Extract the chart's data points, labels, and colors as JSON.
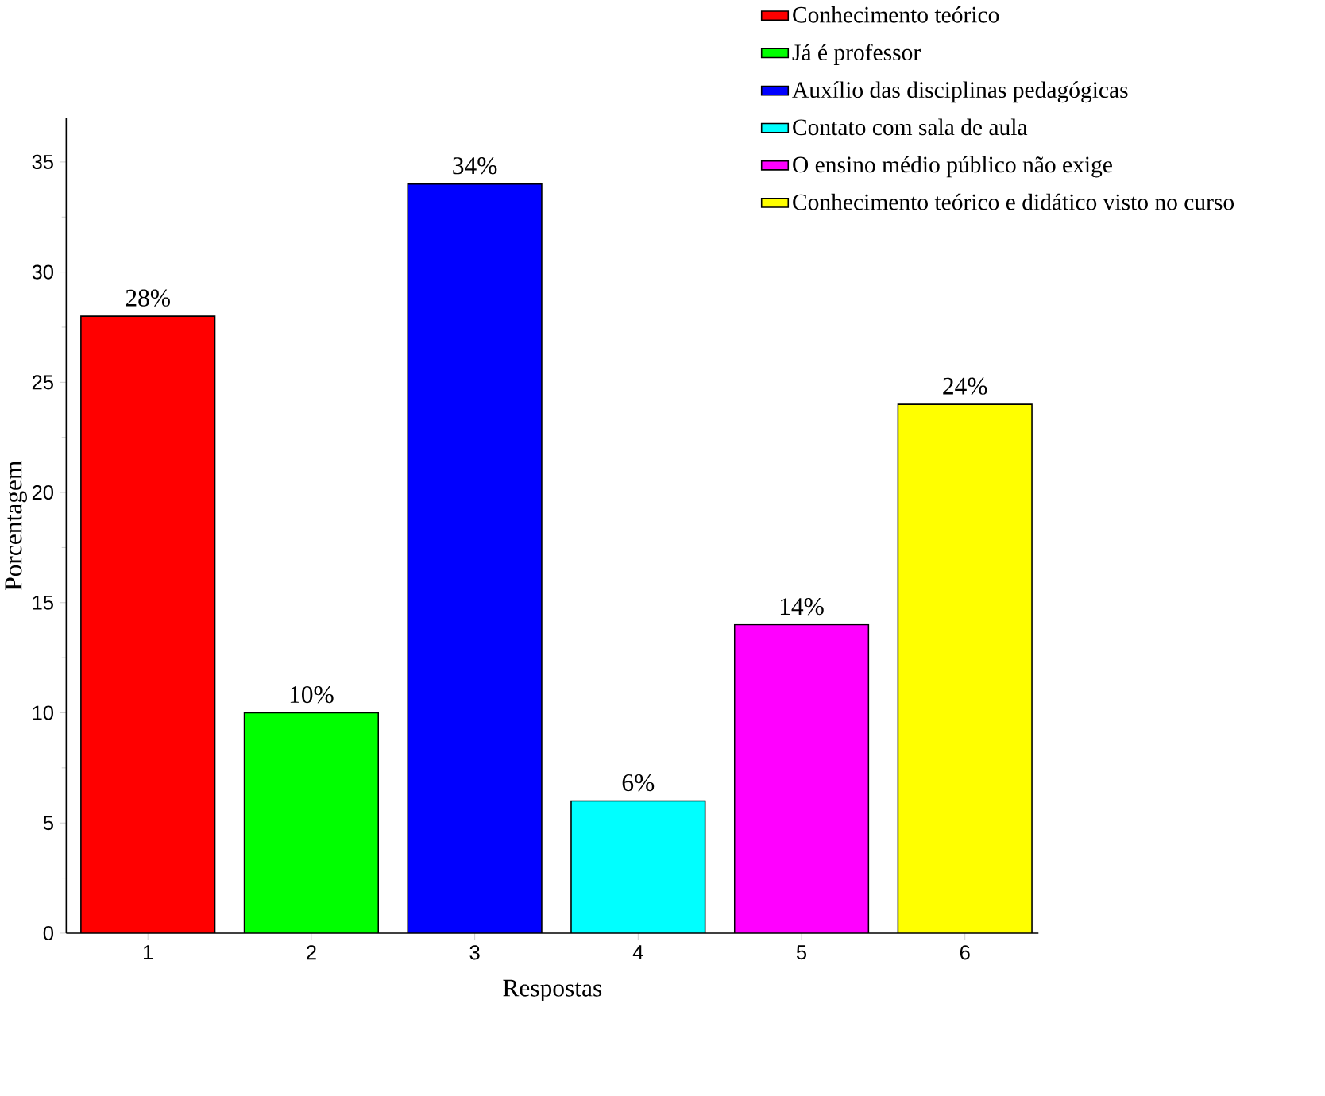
{
  "chart_data": {
    "type": "bar",
    "xlabel": "Respostas",
    "ylabel": "Porcentagem",
    "categories": [
      "1",
      "2",
      "3",
      "4",
      "5",
      "6"
    ],
    "series": [
      {
        "name": "Conhecimento teórico",
        "color": "#ff0000",
        "values": [
          28,
          null,
          null,
          null,
          null,
          null
        ],
        "value_labels": [
          "28%",
          null,
          null,
          null,
          null,
          null
        ]
      },
      {
        "name": "Já é professor",
        "color": "#00ff00",
        "values": [
          null,
          10,
          null,
          null,
          null,
          null
        ],
        "value_labels": [
          null,
          "10%",
          null,
          null,
          null,
          null
        ]
      },
      {
        "name": "Auxílio das disciplinas pedagógicas",
        "color": "#0000ff",
        "values": [
          null,
          null,
          34,
          null,
          null,
          null
        ],
        "value_labels": [
          null,
          null,
          "34%",
          null,
          null,
          null
        ]
      },
      {
        "name": "Contato com sala de aula",
        "color": "#00ffff",
        "values": [
          null,
          null,
          null,
          6,
          null,
          null
        ],
        "value_labels": [
          null,
          null,
          null,
          "6%",
          null,
          null
        ]
      },
      {
        "name": "O ensino médio público não exige",
        "color": "#ff00ff",
        "values": [
          null,
          null,
          null,
          null,
          14,
          null
        ],
        "value_labels": [
          null,
          null,
          null,
          null,
          "14%",
          null
        ]
      },
      {
        "name": "Conhecimento teórico e didático visto no curso",
        "color": "#ffff00",
        "values": [
          null,
          null,
          null,
          null,
          null,
          24
        ],
        "value_labels": [
          null,
          null,
          null,
          null,
          null,
          "24%"
        ]
      }
    ],
    "ylim": [
      0,
      37
    ],
    "yticks": [
      0,
      5,
      10,
      15,
      20,
      25,
      30,
      35
    ],
    "grid": false,
    "legend": "top right"
  }
}
